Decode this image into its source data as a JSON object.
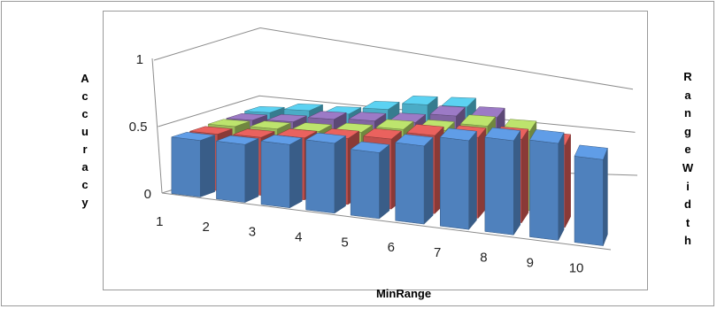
{
  "chart_data": {
    "type": "bar",
    "subtype": "3d-column",
    "title": "",
    "xlabel": "MinRange",
    "ylabel": "Accuracy",
    "zlabel": "RangeWidth",
    "ylim": [
      0,
      1
    ],
    "yticks": [
      "0",
      "0.5",
      "1"
    ],
    "categories": [
      "1",
      "2",
      "3",
      "4",
      "5",
      "6",
      "7",
      "8",
      "9",
      "10"
    ],
    "grid": true,
    "legend": "none",
    "series": [
      {
        "color": "#4f81bd",
        "values": [
          0.42,
          0.43,
          0.47,
          0.52,
          0.49,
          0.58,
          0.66,
          0.7,
          0.72,
          0.64
        ]
      },
      {
        "color": "#c0504d",
        "values": [
          0.42,
          0.43,
          0.46,
          0.49,
          0.52,
          0.58,
          0.6,
          0.62,
          0.61,
          null
        ]
      },
      {
        "color": "#9bbb59",
        "values": [
          0.43,
          0.44,
          0.45,
          0.47,
          0.52,
          0.54,
          0.6,
          0.59,
          null,
          null
        ]
      },
      {
        "color": "#8064a2",
        "values": [
          0.43,
          0.44,
          0.48,
          0.49,
          0.5,
          0.57,
          0.58,
          null,
          null,
          null
        ]
      },
      {
        "color": "#4bacc6",
        "values": [
          0.44,
          0.47,
          0.46,
          0.51,
          0.56,
          0.56,
          null,
          null,
          null,
          null
        ]
      }
    ]
  }
}
